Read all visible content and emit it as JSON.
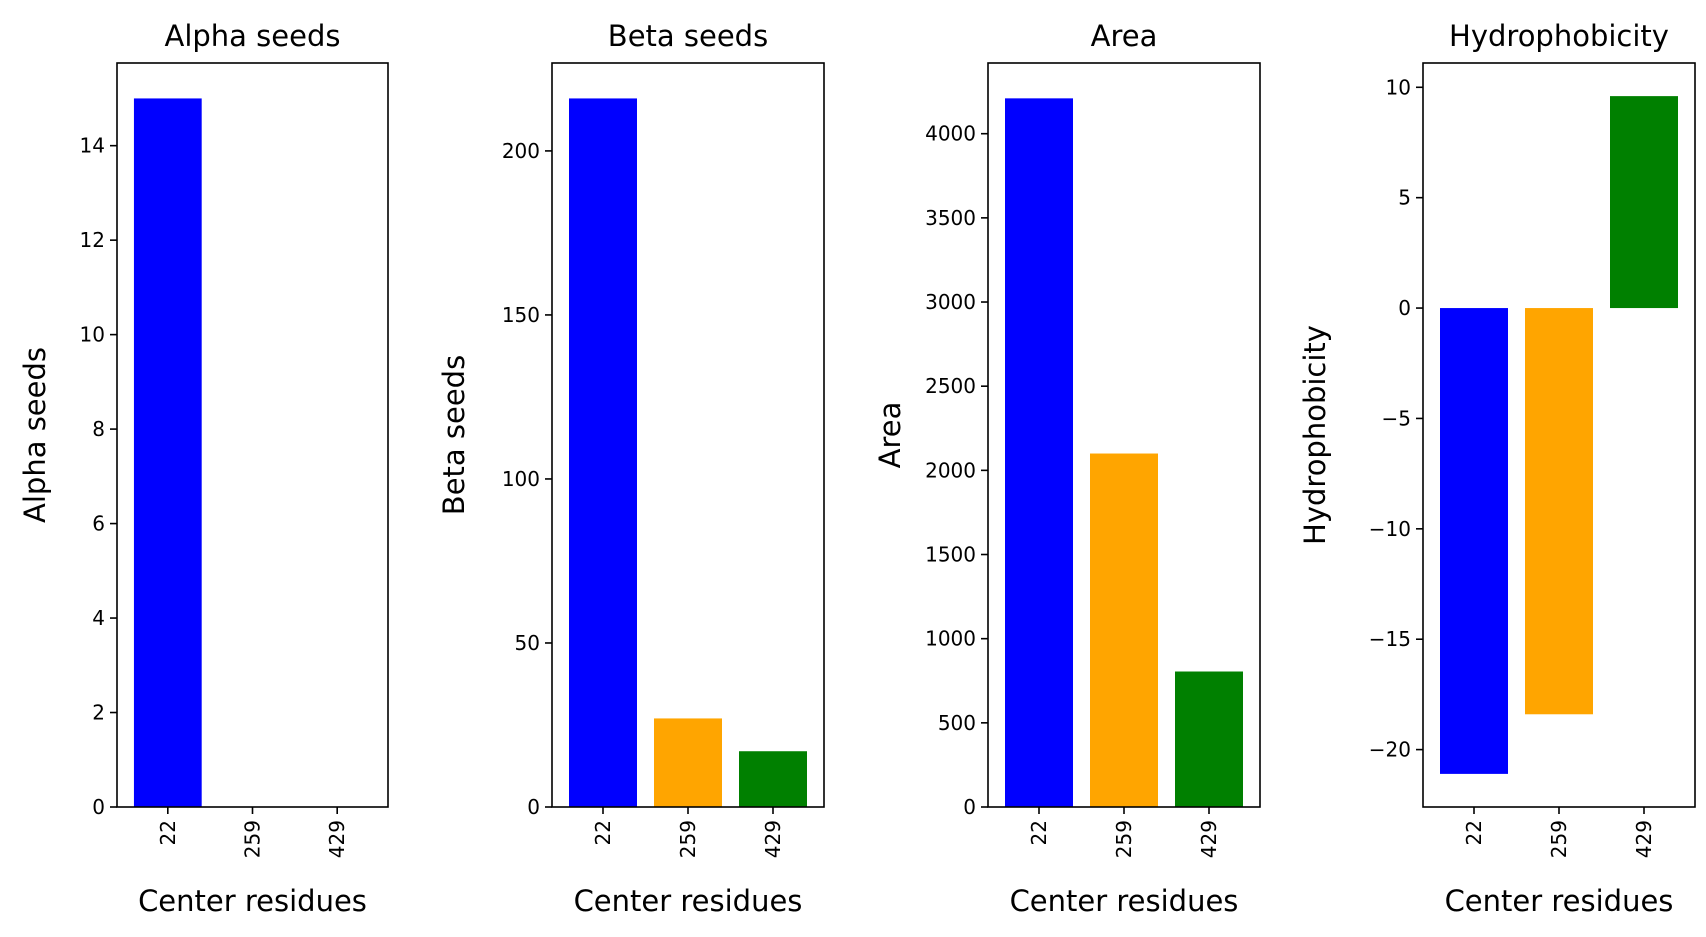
{
  "chart_data": [
    {
      "type": "bar",
      "title": "Alpha seeds",
      "xlabel": "Center residues",
      "ylabel": "Alpha seeds",
      "categories": [
        "22",
        "259",
        "429"
      ],
      "values": [
        15,
        0,
        0
      ],
      "colors": [
        "#0000ff",
        "#ffa500",
        "#008000"
      ],
      "ylim": [
        0,
        15.75
      ],
      "yticks": [
        0,
        2,
        4,
        6,
        8,
        10,
        12,
        14
      ],
      "ytick_labels": [
        "0",
        "2",
        "4",
        "6",
        "8",
        "10",
        "12",
        "14"
      ],
      "grid": false
    },
    {
      "type": "bar",
      "title": "Beta seeds",
      "xlabel": "Center residues",
      "ylabel": "Beta seeds",
      "categories": [
        "22",
        "259",
        "429"
      ],
      "values": [
        216,
        27,
        17
      ],
      "colors": [
        "#0000ff",
        "#ffa500",
        "#008000"
      ],
      "ylim": [
        0,
        226.8
      ],
      "yticks": [
        0,
        50,
        100,
        150,
        200
      ],
      "ytick_labels": [
        "0",
        "50",
        "100",
        "150",
        "200"
      ],
      "grid": false
    },
    {
      "type": "bar",
      "title": "Area",
      "xlabel": "Center residues",
      "ylabel": "Area",
      "categories": [
        "22",
        "259",
        "429"
      ],
      "values": [
        4210,
        2100,
        805
      ],
      "colors": [
        "#0000ff",
        "#ffa500",
        "#008000"
      ],
      "ylim": [
        0,
        4420
      ],
      "yticks": [
        0,
        500,
        1000,
        1500,
        2000,
        2500,
        3000,
        3500,
        4000
      ],
      "ytick_labels": [
        "0",
        "500",
        "1000",
        "1500",
        "2000",
        "2500",
        "3000",
        "3500",
        "4000"
      ],
      "grid": false
    },
    {
      "type": "bar",
      "title": "Hydrophobicity",
      "xlabel": "Center residues",
      "ylabel": "Hydrophobicity",
      "categories": [
        "22",
        "259",
        "429"
      ],
      "values": [
        -21.1,
        -18.4,
        9.6
      ],
      "colors": [
        "#0000ff",
        "#ffa500",
        "#008000"
      ],
      "ylim": [
        -22.6,
        11.1
      ],
      "yticks": [
        -20,
        -15,
        -10,
        -5,
        0,
        5,
        10
      ],
      "ytick_labels": [
        "−20",
        "−15",
        "−10",
        "−5",
        "0",
        "5",
        "10"
      ],
      "grid": false
    }
  ]
}
